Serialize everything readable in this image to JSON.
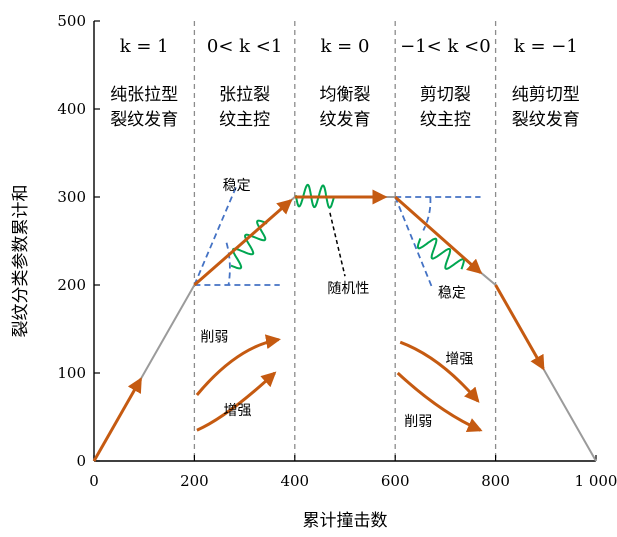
{
  "chart_data": {
    "type": "line",
    "xlabel": "累计撞击数",
    "ylabel": "裂纹分类参数累计和",
    "xlim": [
      0,
      1000
    ],
    "ylim": [
      0,
      500
    ],
    "xticks": [
      0,
      200,
      400,
      600,
      800,
      1000
    ],
    "xtick_labels": [
      "0",
      "200",
      "400",
      "600",
      "800",
      "1 000"
    ],
    "yticks": [
      0,
      100,
      200,
      300,
      400,
      500
    ],
    "ytick_labels": [
      "0",
      "100",
      "200",
      "300",
      "400",
      "500"
    ],
    "stage_boundaries": [
      200,
      400,
      600,
      800
    ],
    "series": [
      {
        "x": [
          0,
          200,
          400,
          600,
          775,
          800,
          1000
        ],
        "y": [
          0,
          200,
          300,
          300,
          212,
          200,
          0
        ]
      }
    ],
    "stages": [
      {
        "k_label": "k = 1",
        "desc_lines": [
          "纯张拉型",
          "裂纹发育"
        ]
      },
      {
        "k_label": "0< k <1",
        "desc_lines": [
          "张拉裂",
          "纹主控"
        ]
      },
      {
        "k_label": "k = 0",
        "desc_lines": [
          "均衡裂",
          "纹发育"
        ]
      },
      {
        "k_label": "−1< k <0",
        "desc_lines": [
          "剪切裂",
          "纹主控"
        ]
      },
      {
        "k_label": "k = −1",
        "desc_lines": [
          "纯剪切型",
          "裂纹发育"
        ]
      }
    ],
    "annotations": {
      "stable_top": "稳定",
      "randomness": "随机性",
      "stable_bottom": "稳定",
      "weaken_left": "削弱",
      "strengthen_left": "增强",
      "strengthen_right": "增强",
      "weaken_right": "削弱"
    },
    "colors": {
      "curve": "#9b9b9b",
      "arrow": "#c55a11",
      "dashed_lines": "#4472c4",
      "oscillation": "#00a651",
      "boundary": "#8c8c8c"
    }
  }
}
